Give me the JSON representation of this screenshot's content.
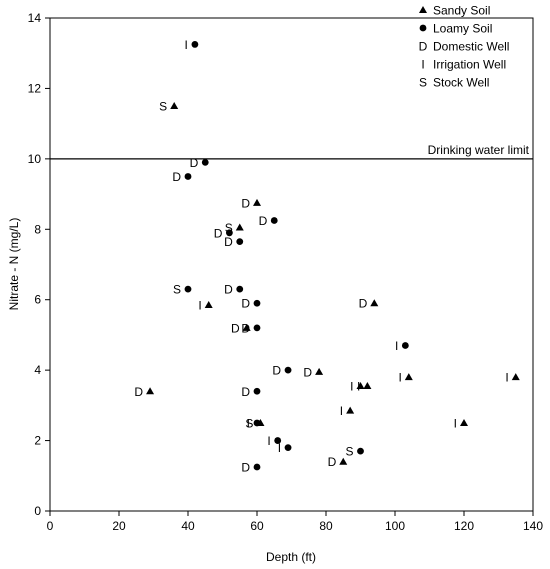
{
  "chart_data": {
    "type": "scatter",
    "xlabel": "Depth (ft)",
    "ylabel": "Nitrate - N (mg/L)",
    "xlim": [
      0,
      140
    ],
    "ylim": [
      0,
      14
    ],
    "x_ticks": [
      0,
      20,
      40,
      60,
      80,
      100,
      120,
      140
    ],
    "y_ticks": [
      0,
      2,
      4,
      6,
      8,
      10,
      12,
      14
    ],
    "grid": false,
    "reference_line": {
      "y": 10,
      "label": "Drinking water limit"
    },
    "legend_position": "top-right",
    "legend": [
      {
        "code": "sandy",
        "symbol": "triangle",
        "label": "Sandy Soil"
      },
      {
        "code": "loamy",
        "symbol": "circle",
        "label": "Loamy Soil"
      },
      {
        "code": "D",
        "symbol": "letter",
        "label": "Domestic Well"
      },
      {
        "code": "I",
        "symbol": "letter",
        "label": "Irrigation Well"
      },
      {
        "code": "S",
        "symbol": "letter",
        "label": "Stock Well"
      }
    ],
    "points": [
      {
        "x": 42,
        "y": 13.25,
        "soil": "loamy",
        "well": "I"
      },
      {
        "x": 36,
        "y": 11.5,
        "soil": "sandy",
        "well": "S"
      },
      {
        "x": 45,
        "y": 9.9,
        "soil": "loamy",
        "well": "D"
      },
      {
        "x": 40,
        "y": 9.5,
        "soil": "loamy",
        "well": "D"
      },
      {
        "x": 60,
        "y": 8.75,
        "soil": "sandy",
        "well": "D"
      },
      {
        "x": 65,
        "y": 8.25,
        "soil": "loamy",
        "well": "D"
      },
      {
        "x": 55,
        "y": 8.05,
        "soil": "sandy",
        "well": "S"
      },
      {
        "x": 52,
        "y": 7.9,
        "soil": "loamy",
        "well": "D"
      },
      {
        "x": 55,
        "y": 7.65,
        "soil": "loamy",
        "well": "D"
      },
      {
        "x": 40,
        "y": 6.3,
        "soil": "loamy",
        "well": "S"
      },
      {
        "x": 55,
        "y": 6.3,
        "soil": "loamy",
        "well": "D"
      },
      {
        "x": 60,
        "y": 5.9,
        "soil": "loamy",
        "well": "D"
      },
      {
        "x": 46,
        "y": 5.85,
        "soil": "sandy",
        "well": "I"
      },
      {
        "x": 94,
        "y": 5.9,
        "soil": "sandy",
        "well": "D"
      },
      {
        "x": 57,
        "y": 5.2,
        "soil": "sandy",
        "well": "D"
      },
      {
        "x": 60,
        "y": 5.2,
        "soil": "loamy",
        "well": "D"
      },
      {
        "x": 103,
        "y": 4.7,
        "soil": "loamy",
        "well": "I"
      },
      {
        "x": 69,
        "y": 4.0,
        "soil": "loamy",
        "well": "D"
      },
      {
        "x": 78,
        "y": 3.95,
        "soil": "sandy",
        "well": "D"
      },
      {
        "x": 104,
        "y": 3.8,
        "soil": "sandy",
        "well": "I"
      },
      {
        "x": 135,
        "y": 3.8,
        "soil": "sandy",
        "well": "I"
      },
      {
        "x": 90,
        "y": 3.55,
        "soil": "sandy",
        "well": "I"
      },
      {
        "x": 92,
        "y": 3.55,
        "soil": "sandy",
        "well": "I"
      },
      {
        "x": 29,
        "y": 3.4,
        "soil": "sandy",
        "well": "D"
      },
      {
        "x": 60,
        "y": 3.4,
        "soil": "loamy",
        "well": "D"
      },
      {
        "x": 87,
        "y": 2.85,
        "soil": "sandy",
        "well": "I"
      },
      {
        "x": 120,
        "y": 2.5,
        "soil": "sandy",
        "well": "I"
      },
      {
        "x": 60,
        "y": 2.5,
        "soil": "loamy",
        "well": "I"
      },
      {
        "x": 61,
        "y": 2.5,
        "soil": "sandy",
        "well": "S"
      },
      {
        "x": 66,
        "y": 2.0,
        "soil": "loamy",
        "well": "I"
      },
      {
        "x": 69,
        "y": 1.8,
        "soil": "loamy",
        "well": "I"
      },
      {
        "x": 90,
        "y": 1.7,
        "soil": "loamy",
        "well": "S"
      },
      {
        "x": 85,
        "y": 1.4,
        "soil": "sandy",
        "well": "D"
      },
      {
        "x": 60,
        "y": 1.25,
        "soil": "loamy",
        "well": "D"
      }
    ]
  }
}
